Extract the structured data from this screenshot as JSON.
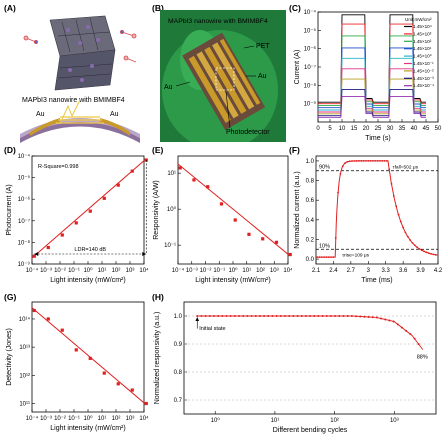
{
  "panel_labels": [
    "(A)",
    "(B)",
    "(C)",
    "(D)",
    "(E)",
    "(F)",
    "(G)",
    "(H)"
  ],
  "panel_a": {
    "caption": "MAPbI3 nanowire with BMIMBF4",
    "au_left": "Au",
    "au_right": "Au",
    "substrate": "PET"
  },
  "panel_b": {
    "caption": "MAPbI3 nanowire with BMIMBF4",
    "pet": "PET",
    "au_left": "Au",
    "au_right": "Au",
    "detector": "Photodetector"
  },
  "colors": {
    "fit_line": "#e02020",
    "marker": "#e02020",
    "nanowire": "#f2c842",
    "gold": "#c99a2a",
    "pet": "#8b6f9c",
    "glove": "#2d9a4a"
  },
  "chart_data": [
    {
      "id": "C",
      "type": "line",
      "xlabel": "Time (s)",
      "ylabel": "Current (A)",
      "xlim": [
        0,
        50
      ],
      "yscale": "log",
      "ylim": [
        1e-10,
        0.0001
      ],
      "xticks": [
        0,
        5,
        10,
        15,
        20,
        25,
        30,
        35,
        40,
        45,
        50
      ],
      "yticks": [
        1e-09,
        1e-08,
        1e-07,
        1e-06,
        1e-05,
        0.0001
      ],
      "legend_title": "Unit:mW/cm²",
      "legend_position": "right",
      "series": [
        {
          "name": "1.45×10⁴",
          "color": "#000000",
          "on": 7e-05,
          "off": 1.2e-09
        },
        {
          "name": "1.45×10³",
          "color": "#e8262a",
          "on": 2.2e-05,
          "off": 1e-09
        },
        {
          "name": "1.45×10²",
          "color": "#2ea84a",
          "on": 5e-06,
          "off": 8e-10
        },
        {
          "name": "1.45×10¹",
          "color": "#1f4fd0",
          "on": 1.1e-06,
          "off": 6e-10
        },
        {
          "name": "1.45×10⁰",
          "color": "#28b4c8",
          "on": 3e-07,
          "off": 4.5e-10
        },
        {
          "name": "1.45×10⁻¹",
          "color": "#e0308a",
          "on": 8e-08,
          "off": 3.5e-10
        },
        {
          "name": "1.45×10⁻²",
          "color": "#b8a020",
          "on": 2.2e-08,
          "off": 2.8e-10
        },
        {
          "name": "1.45×10⁻³",
          "color": "#1a1a80",
          "on": 6e-09,
          "off": 2.2e-10
        },
        {
          "name": "1.45×10⁻⁴",
          "color": "#9030b0",
          "on": 2.5e-09,
          "off": 1.8e-10
        }
      ],
      "on_intervals": [
        [
          10,
          20
        ],
        [
          30,
          40
        ]
      ]
    },
    {
      "id": "D",
      "type": "scatter",
      "xlabel": "Light intensity (mW/cm²)",
      "ylabel": "Photocurrent (A)",
      "xscale": "log",
      "yscale": "log",
      "xlim": [
        0.0001,
        10000.0
      ],
      "ylim": [
        1e-09,
        0.0001
      ],
      "xticks": [
        0.0001,
        0.001,
        0.01,
        0.1,
        1.0,
        10.0,
        100.0,
        1000.0,
        10000.0
      ],
      "yticks": [
        1e-09,
        1e-08,
        1e-07,
        1e-06,
        1e-05,
        0.0001
      ],
      "annotation": "R-Square=0.998",
      "ldr_label": "LDR=140 dB",
      "x": [
        0.000145,
        0.00145,
        0.0145,
        0.145,
        1.45,
        14.5,
        145.0,
        1450.0,
        14500.0
      ],
      "y": [
        2.3e-09,
        5.8e-09,
        2.2e-08,
        8e-08,
        2.8e-07,
        1.1e-06,
        4.5e-06,
        2e-05,
        6.5e-05
      ],
      "fit": {
        "x": [
          0.0001,
          14500.0
        ],
        "y": [
          1.9e-09,
          7.5e-05
        ]
      }
    },
    {
      "id": "E",
      "type": "scatter",
      "xlabel": "Light intensity (mW/cm²)",
      "ylabel": "Responsivity (A/W)",
      "xscale": "log",
      "yscale": "log",
      "xlim": [
        0.0001,
        10000.0
      ],
      "ylim": [
        0.03,
        30
      ],
      "xticks": [
        0.0001,
        0.001,
        0.01,
        0.1,
        1.0,
        10.0,
        100.0,
        1000.0,
        10000.0
      ],
      "yticks": [
        0.1,
        1.0,
        10.0
      ],
      "x": [
        0.000145,
        0.00145,
        0.0145,
        0.145,
        1.45,
        14.5,
        145.0,
        1450.0,
        14500.0
      ],
      "y": [
        14,
        6.5,
        4.2,
        1.4,
        0.5,
        0.2,
        0.15,
        0.12,
        0.055
      ],
      "fit": {
        "x": [
          0.0001,
          14500.0
        ],
        "y": [
          18,
          0.05
        ]
      }
    },
    {
      "id": "F",
      "type": "line",
      "xlabel": "Time (ms)",
      "ylabel": "Normalized current (a.u.)",
      "xlim": [
        2.1,
        4.2
      ],
      "ylim": [
        -0.05,
        1.05
      ],
      "xticks": [
        2.1,
        2.4,
        2.7,
        3.0,
        3.3,
        3.6,
        3.9,
        4.2
      ],
      "yticks": [
        0.0,
        0.2,
        0.4,
        0.6,
        0.8,
        1.0
      ],
      "level_90": "90%",
      "level_10": "10%",
      "rise_label": "τrise=109 μs",
      "fall_label": "τfall=502 μs",
      "rise_start": 2.43,
      "rise_end": 2.54,
      "fall_start": 3.34
    },
    {
      "id": "G",
      "type": "scatter",
      "xlabel": "Light intensity (mW/cm²)",
      "ylabel": "Detectivity (Jones)",
      "xscale": "log",
      "yscale": "log",
      "xlim": [
        0.0001,
        10000.0
      ],
      "ylim": [
        50000000000.0,
        400000000000000.0
      ],
      "xticks": [
        0.0001,
        0.001,
        0.01,
        0.1,
        1.0,
        10.0,
        100.0,
        1000.0,
        10000.0
      ],
      "yticks": [
        100000000000.0,
        1000000000000.0,
        10000000000000.0,
        100000000000000.0
      ],
      "x": [
        0.000145,
        0.00145,
        0.0145,
        0.145,
        1.45,
        14.5,
        145.0,
        1450.0,
        14500.0
      ],
      "y": [
        200000000000000.0,
        100000000000000.0,
        40000000000000.0,
        8000000000000.0,
        4000000000000.0,
        1200000000000.0,
        500000000000.0,
        300000000000.0,
        100000000000.0
      ],
      "fit": {
        "x": [
          0.0001,
          14500.0
        ],
        "y": [
          250000000000000.0,
          90000000000.0
        ]
      }
    },
    {
      "id": "H",
      "type": "line",
      "xlabel": "Different bending cycles",
      "ylabel": "Normalized responsivity (a.u.)",
      "xscale": "log",
      "xlim": [
        0.3,
        5000
      ],
      "ylim": [
        0.65,
        1.05
      ],
      "xticks": [
        1,
        10,
        100,
        1000
      ],
      "yticks": [
        0.7,
        0.8,
        0.9,
        1.0
      ],
      "initial_label": "Initial state",
      "end_label": "88%",
      "x": [
        0.5,
        1,
        2,
        5,
        10,
        20,
        50,
        100,
        200,
        500,
        1000,
        2000,
        3000
      ],
      "y": [
        1.0,
        1.0,
        1.0,
        1.0,
        1.0,
        1.0,
        1.0,
        1.0,
        1.0,
        0.995,
        0.98,
        0.93,
        0.88
      ]
    }
  ]
}
